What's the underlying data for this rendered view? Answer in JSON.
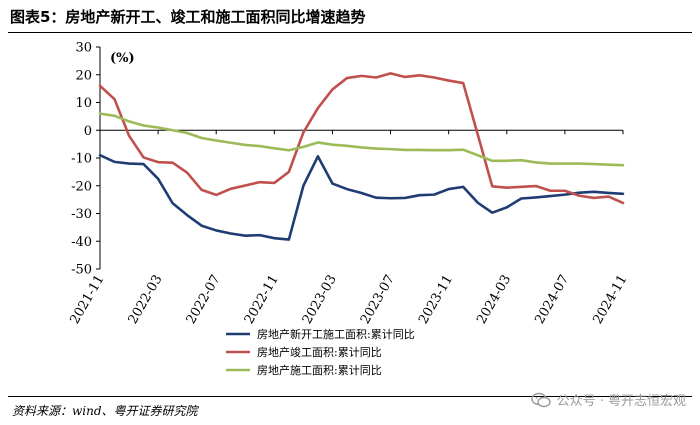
{
  "figure": {
    "title": "图表5：房地产新开工、竣工和施工面积同比增速趋势",
    "source": "资料来源：wind、粤开证券研究院",
    "watermark": "公众号 · 粤开志恒宏观"
  },
  "chart_data": {
    "type": "line",
    "ylabel": "(%)",
    "ylim": [
      -50,
      30
    ],
    "yticks": [
      -50,
      -40,
      -30,
      -20,
      -10,
      0,
      10,
      20,
      30
    ],
    "xlim": [
      "2021-11",
      "2024-11"
    ],
    "xticks": [
      "2021-11",
      "2022-03",
      "2022-07",
      "2022-11",
      "2023-03",
      "2023-07",
      "2023-11",
      "2024-03",
      "2024-07",
      "2024-11"
    ],
    "legend_position": "bottom",
    "grid": false,
    "x": [
      "2021-11",
      "2021-12",
      "2022-01",
      "2022-02",
      "2022-03",
      "2022-04",
      "2022-05",
      "2022-06",
      "2022-07",
      "2022-08",
      "2022-09",
      "2022-10",
      "2022-11",
      "2022-12",
      "2023-01",
      "2023-02",
      "2023-03",
      "2023-04",
      "2023-05",
      "2023-06",
      "2023-07",
      "2023-08",
      "2023-09",
      "2023-10",
      "2023-11",
      "2023-12",
      "2024-01",
      "2024-02",
      "2024-03",
      "2024-04",
      "2024-05",
      "2024-06",
      "2024-07",
      "2024-08",
      "2024-09",
      "2024-10",
      "2024-11"
    ],
    "series": [
      {
        "name": "房地产新开工施工面积:累计同比",
        "color": "#1f3c73",
        "values": [
          -9.0,
          -11.4,
          -12.0,
          -12.2,
          -17.5,
          -26.3,
          -30.6,
          -34.4,
          -36.1,
          -37.2,
          -38.0,
          -37.8,
          -38.9,
          -39.4,
          -20.0,
          -9.4,
          -19.2,
          -21.2,
          -22.6,
          -24.3,
          -24.5,
          -24.4,
          -23.4,
          -23.2,
          -21.2,
          -20.4,
          -26.1,
          -29.7,
          -27.8,
          -24.6,
          -24.2,
          -23.7,
          -23.2,
          -22.5,
          -22.2,
          -22.6,
          -22.9
        ]
      },
      {
        "name": "房地产竣工面积:累计同比",
        "color": "#c0504d",
        "values": [
          16.0,
          11.2,
          -2.0,
          -9.8,
          -11.5,
          -11.7,
          -15.3,
          -21.5,
          -23.3,
          -21.1,
          -19.9,
          -18.7,
          -19.0,
          -15.0,
          -0.8,
          8.0,
          14.7,
          18.8,
          19.6,
          19.0,
          20.5,
          19.2,
          19.8,
          19.0,
          17.9,
          17.0,
          -1.5,
          -20.2,
          -20.7,
          -20.4,
          -20.1,
          -21.8,
          -21.8,
          -23.6,
          -24.4,
          -23.9,
          -26.2
        ]
      },
      {
        "name": "房地产施工面积:累计同比",
        "color": "#9bbb59",
        "values": [
          6.0,
          5.2,
          3.2,
          1.7,
          1.0,
          0.0,
          -1.0,
          -2.8,
          -3.7,
          -4.5,
          -5.3,
          -5.7,
          -6.5,
          -7.2,
          -6.0,
          -4.4,
          -5.2,
          -5.6,
          -6.2,
          -6.6,
          -6.8,
          -7.1,
          -7.1,
          -7.2,
          -7.2,
          -7.0,
          -9.0,
          -11.0,
          -11.0,
          -10.8,
          -11.6,
          -12.0,
          -12.0,
          -12.0,
          -12.2,
          -12.4,
          -12.6
        ]
      }
    ]
  }
}
